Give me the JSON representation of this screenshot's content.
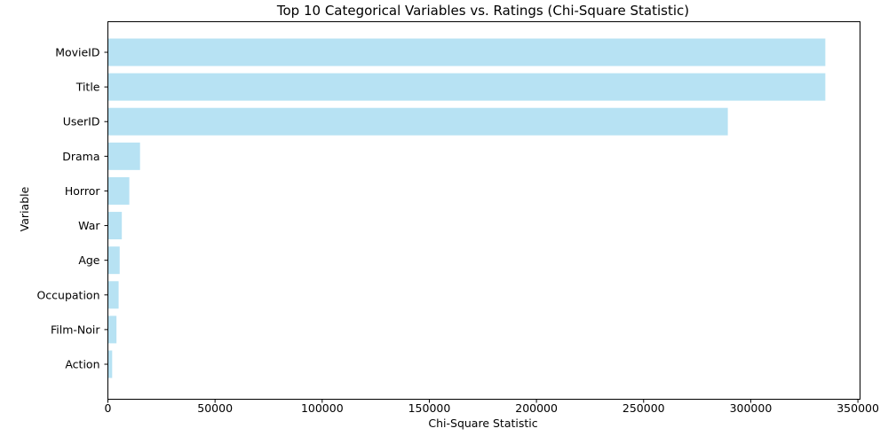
{
  "chart_data": {
    "type": "bar",
    "orientation": "horizontal",
    "title": "Top 10 Categorical Variables vs. Ratings (Chi-Square Statistic)",
    "xlabel": "Chi-Square Statistic",
    "ylabel": "Variable",
    "categories": [
      "MovieID",
      "Title",
      "UserID",
      "Drama",
      "Horror",
      "War",
      "Age",
      "Occupation",
      "Film-Noir",
      "Action"
    ],
    "values": [
      334800,
      334800,
      289300,
      15000,
      10000,
      6500,
      5500,
      5000,
      4000,
      2000
    ],
    "xlim": [
      0,
      351000
    ],
    "xticks": [
      0,
      50000,
      100000,
      150000,
      200000,
      250000,
      300000,
      350000
    ],
    "xtick_labels": [
      "0",
      "50000",
      "100000",
      "150000",
      "200000",
      "250000",
      "300000",
      "350000"
    ],
    "bar_color": "#87CEEB",
    "bar_opacity": 0.6,
    "grid": false,
    "legend": false
  }
}
